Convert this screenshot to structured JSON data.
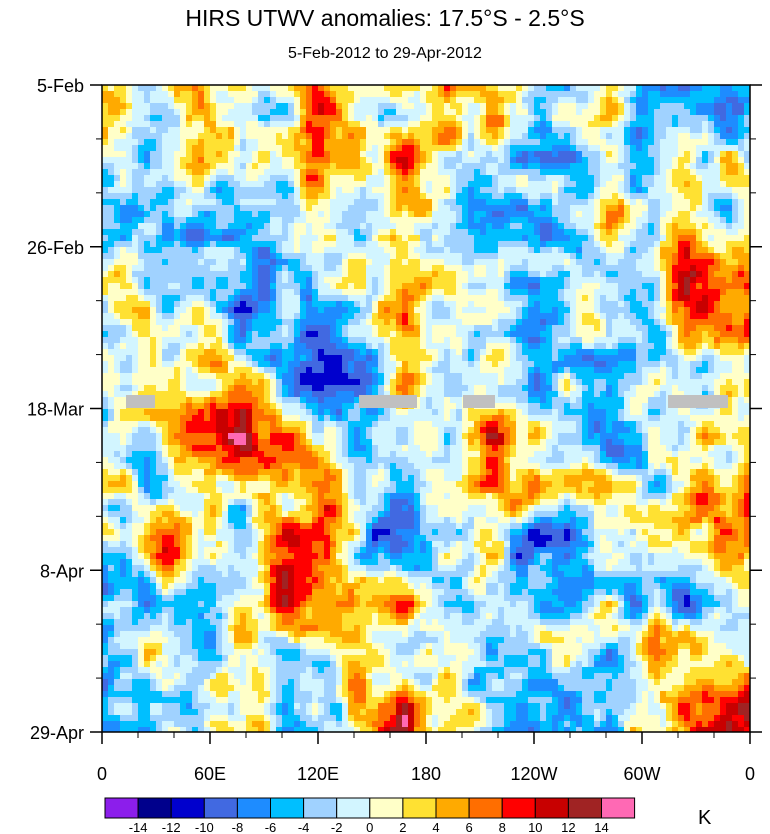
{
  "chart_data": {
    "type": "heatmap",
    "title": "HIRS UTWV anomalies: 17.5°S - 2.5°S",
    "subtitle": "5-Feb-2012 to 29-Apr-2012",
    "xlabel": "",
    "ylabel": "",
    "x_range": [
      0,
      360
    ],
    "x_ticks": [
      "0",
      "60E",
      "120E",
      "180",
      "120W",
      "60W",
      "0"
    ],
    "y_ticks": [
      "5-Feb",
      "26-Feb",
      "18-Mar",
      "8-Apr",
      "29-Apr"
    ],
    "units_label": "K",
    "colorbar": {
      "levels": [
        "-14",
        "-12",
        "-10",
        "-8",
        "-6",
        "-4",
        "-2",
        "0",
        "2",
        "4",
        "6",
        "8",
        "10",
        "12",
        "14"
      ],
      "colors": [
        "#8c1eeb",
        "#00008c",
        "#0000cd",
        "#4169e1",
        "#1e8cff",
        "#00bfff",
        "#a0d2ff",
        "#d2f5ff",
        "#ffffc8",
        "#ffe132",
        "#ffaa00",
        "#ff6e00",
        "#ff0000",
        "#c80000",
        "#a02323",
        "#ff69b4"
      ]
    },
    "missing_color": "#c0c0c0",
    "grid": [
      [
        3,
        0,
        5,
        1,
        -2,
        8,
        1,
        1,
        5,
        5,
        -2,
        -2,
        4,
        -4,
        -6,
        -6
      ],
      [
        -3,
        -2,
        4,
        0,
        -2,
        6,
        1,
        8,
        2,
        -2,
        -3,
        -5,
        0,
        -4,
        2,
        0
      ],
      [
        -4,
        -6,
        -6,
        -4,
        -3,
        0,
        -2,
        0,
        -1,
        -4,
        -5,
        -3,
        3,
        0,
        6,
        -2
      ],
      [
        0,
        -4,
        -3,
        -5,
        -4,
        -2,
        0,
        6,
        2,
        -2,
        -4,
        0,
        -1,
        -2,
        10,
        5
      ],
      [
        1,
        -1,
        2,
        -6,
        -5,
        -6,
        -4,
        6,
        -1,
        -3,
        -4,
        -1,
        -2,
        -3,
        6,
        7
      ],
      [
        2,
        0,
        2,
        4,
        -4,
        -10,
        -6,
        5,
        -4,
        -2,
        -6,
        -3,
        -7,
        -3,
        -1,
        3
      ],
      [
        -3,
        1,
        6,
        10,
        9,
        1,
        -5,
        -1,
        -1,
        8,
        3,
        0,
        -8,
        -2,
        2,
        0
      ],
      [
        0,
        -4,
        4,
        -1,
        0,
        7,
        -2,
        -6,
        -2,
        4,
        6,
        2,
        4,
        -4,
        6,
        4
      ],
      [
        -3,
        8,
        2,
        0,
        9,
        10,
        -6,
        -7,
        0,
        3,
        -8,
        -8,
        0,
        1,
        4,
        6
      ],
      [
        -6,
        0,
        -7,
        1,
        9,
        4,
        2,
        6,
        -2,
        -1,
        -4,
        -6,
        -1,
        -4,
        -6,
        -2
      ],
      [
        -3,
        1,
        -4,
        2,
        -1,
        -2,
        2,
        -4,
        0,
        -5,
        -2,
        0,
        -4,
        2,
        6,
        0
      ],
      [
        -5,
        -3,
        0,
        2,
        -4,
        -3,
        4,
        10,
        2,
        -2,
        -5,
        -4,
        -2,
        0,
        8,
        10
      ]
    ]
  }
}
